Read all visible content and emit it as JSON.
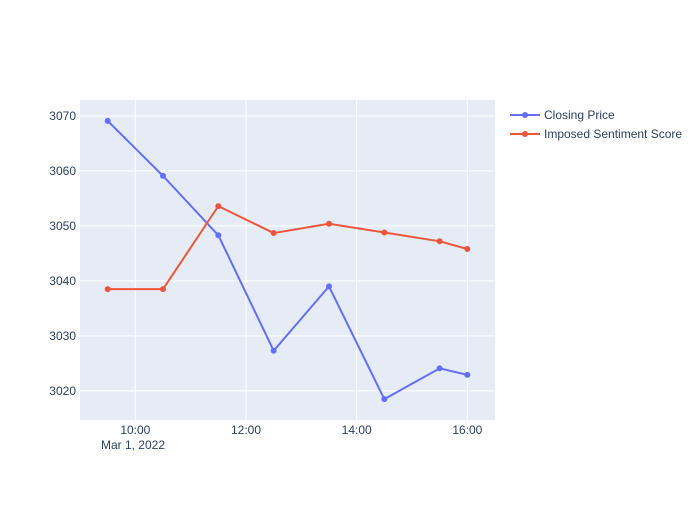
{
  "chart_data": {
    "type": "line",
    "x": [
      "2022-03-01 09:30",
      "2022-03-01 10:30",
      "2022-03-01 11:30",
      "2022-03-01 12:30",
      "2022-03-01 13:30",
      "2022-03-01 14:30",
      "2022-03-01 15:30",
      "2022-03-01 16:00"
    ],
    "series": [
      {
        "name": "Closing Price",
        "color": "#636efa",
        "values": [
          3069.1,
          3059.1,
          3048.3,
          3027.3,
          3039.0,
          3018.5,
          3024.1,
          3022.9
        ]
      },
      {
        "name": "Imposed Sentiment Score",
        "color": "#ef553b",
        "values": [
          3038.5,
          3038.5,
          3053.6,
          3048.7,
          3050.4,
          3048.8,
          3047.2,
          3045.8
        ]
      }
    ],
    "ylim": [
      3014.7,
      3072.9
    ],
    "xlim": [
      "2022-03-01 09:00",
      "2022-03-01 16:30"
    ],
    "y_ticks": [
      3020,
      3030,
      3040,
      3050,
      3060,
      3070
    ],
    "x_ticks": [
      {
        "value": "2022-03-01 10:00",
        "label": "10:00"
      },
      {
        "value": "2022-03-01 12:00",
        "label": "12:00"
      },
      {
        "value": "2022-03-01 14:00",
        "label": "14:00"
      },
      {
        "value": "2022-03-01 16:00",
        "label": "16:00"
      }
    ],
    "x_date_label": "Mar 1, 2022",
    "grid": true,
    "legend_position": "top-right",
    "plot_background": "#e5ecf6"
  }
}
